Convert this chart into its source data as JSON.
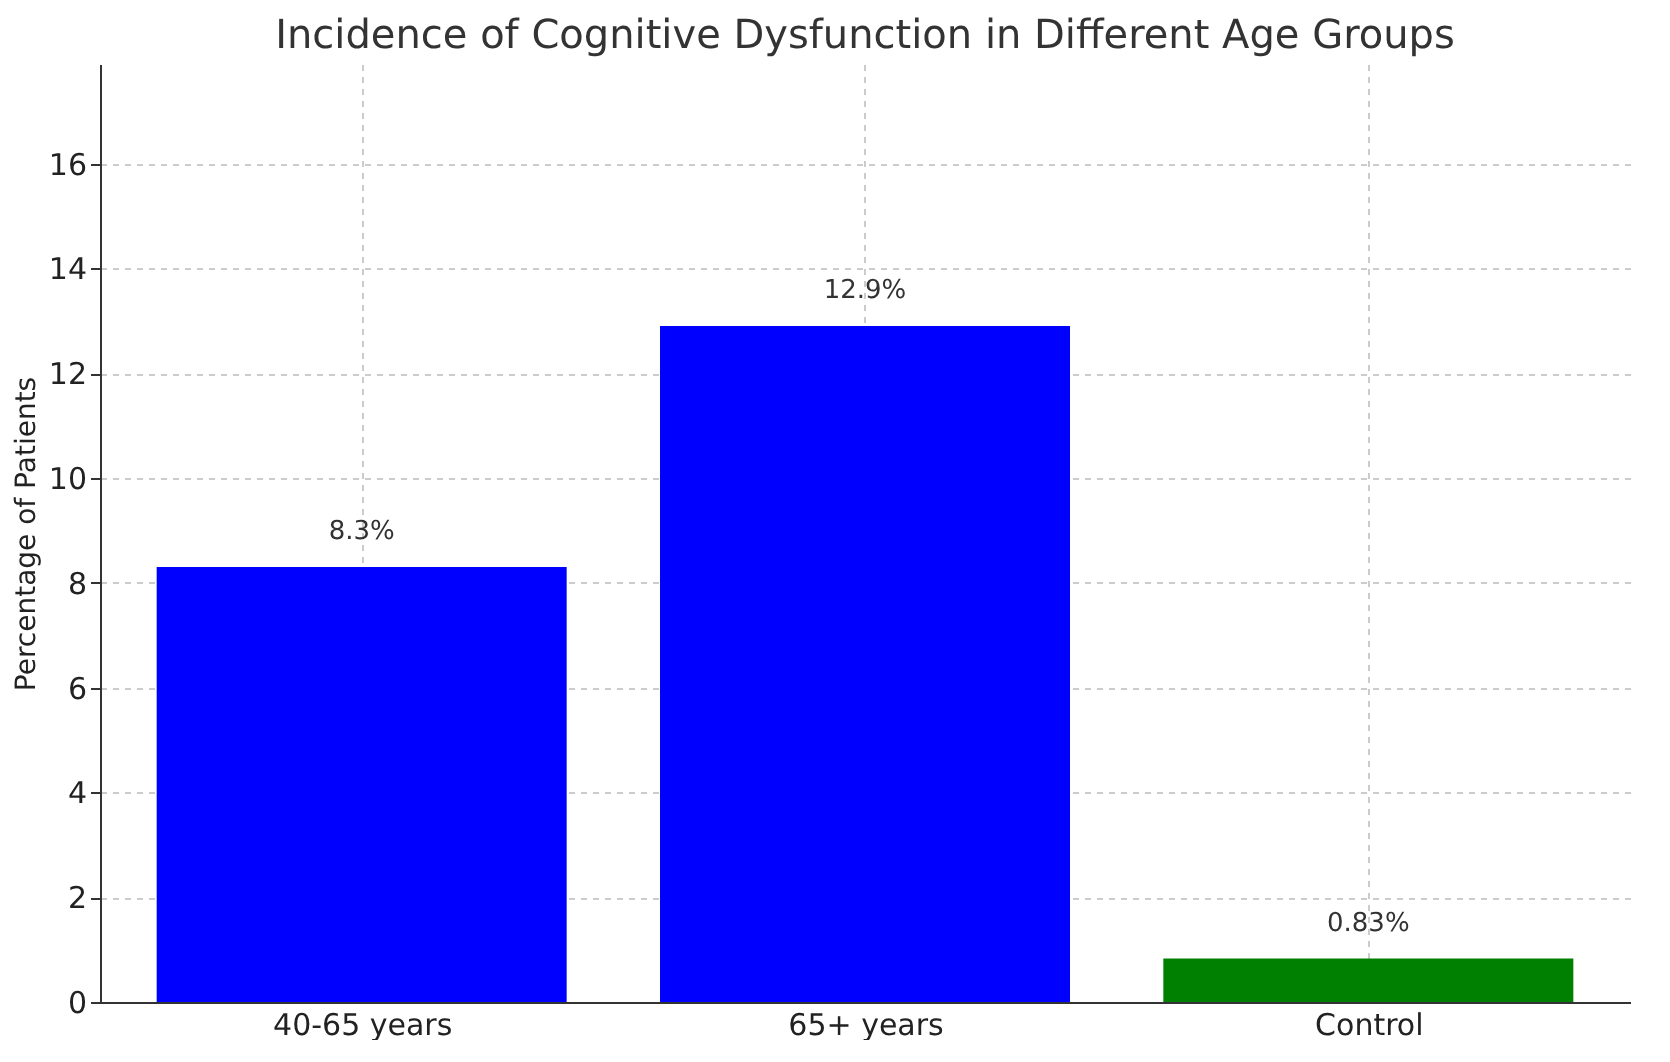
{
  "chart_data": {
    "type": "bar",
    "title": "Incidence of Cognitive Dysfunction in Different Age Groups",
    "ylabel": "Percentage of Patients",
    "categories": [
      "40-65 years",
      "65+ years",
      "Control"
    ],
    "values": [
      8.3,
      12.9,
      0.83
    ],
    "colors": [
      "#0000ff",
      "#0000ff",
      "#008000"
    ],
    "value_labels": [
      "8.3%",
      "12.9%",
      "0.83%"
    ],
    "ylim": [
      0,
      17.9
    ],
    "yticks": [
      0,
      2,
      4,
      6,
      8,
      10,
      12,
      14,
      16
    ],
    "grid": true
  }
}
